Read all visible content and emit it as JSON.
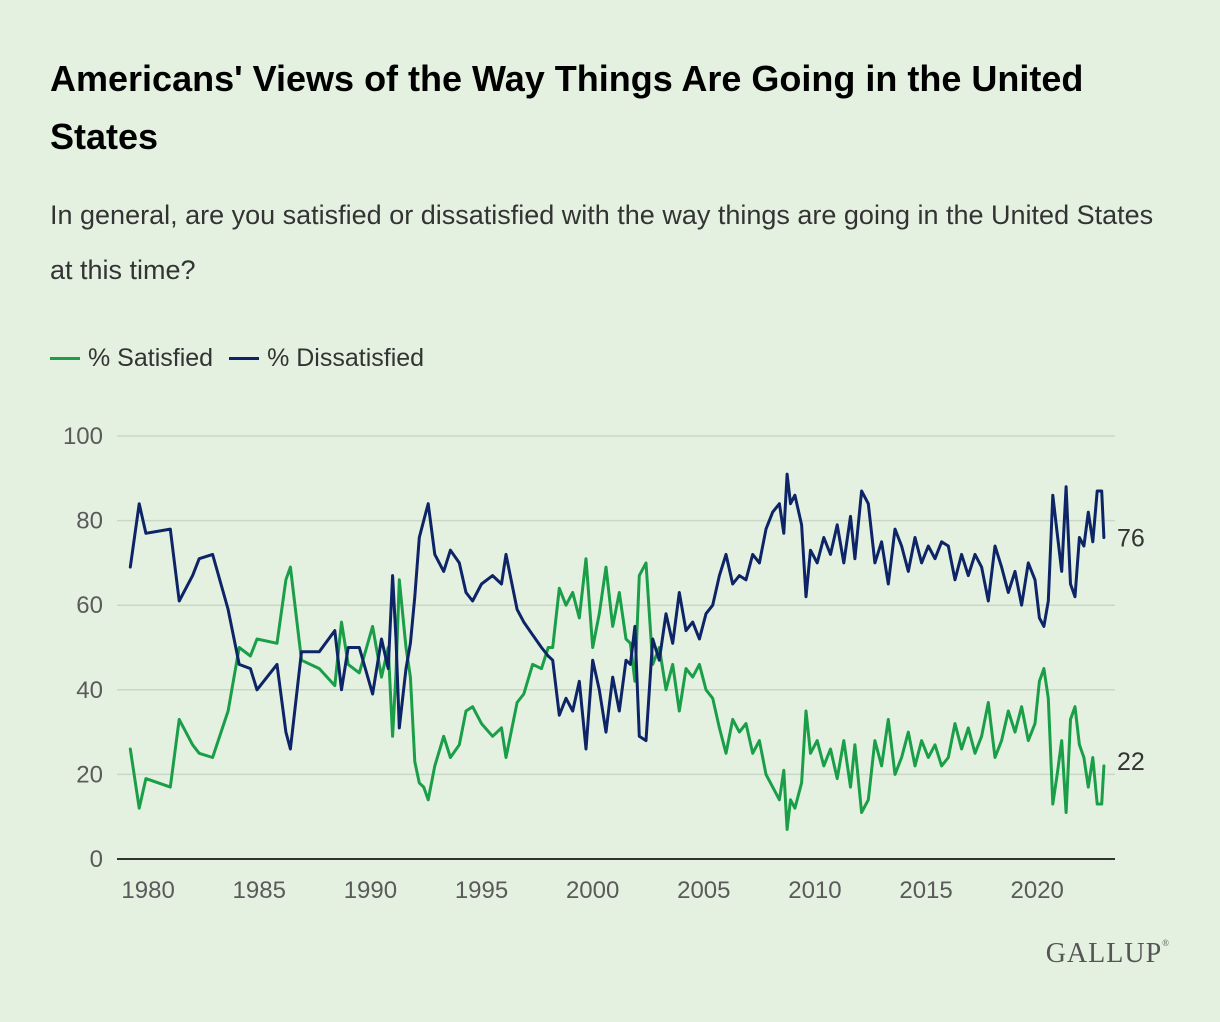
{
  "title": "Americans' Views of the Way Things Are Going in the United States",
  "subtitle": "In general, are you satisfied or dissatisfied with the way things are going in the United States at this time?",
  "legend": {
    "satisfied": "% Satisfied",
    "dissatisfied": "% Dissatisfied"
  },
  "logo": {
    "text": "GALLUP",
    "mark": "®"
  },
  "colors": {
    "satisfied": "#1a9e48",
    "dissatisfied": "#0d2466",
    "grid": "#c9d8c6",
    "axis": "#333333",
    "background": "#e4f1e1"
  },
  "chart_data": {
    "type": "line",
    "title": "Americans' Views of the Way Things Are Going in the United States",
    "xlabel": "",
    "ylabel": "",
    "xlim": [
      1978.6,
      2023.5
    ],
    "ylim": [
      0,
      100
    ],
    "y_ticks": [
      0,
      20,
      40,
      60,
      80,
      100
    ],
    "x_ticks": [
      1980,
      1985,
      1990,
      1995,
      2000,
      2005,
      2010,
      2015,
      2020
    ],
    "grid": true,
    "legend_position": "top-left",
    "end_labels": {
      "satisfied": "22",
      "dissatisfied": "76"
    },
    "series": [
      {
        "name": "% Satisfied",
        "key": "satisfied",
        "x": [
          1979.2,
          1979.6,
          1979.9,
          1981.0,
          1981.4,
          1982.0,
          1982.3,
          1982.9,
          1983.6,
          1984.1,
          1984.6,
          1984.9,
          1985.8,
          1986.2,
          1986.4,
          1986.9,
          1987.7,
          1988.4,
          1988.7,
          1989.0,
          1989.5,
          1990.1,
          1990.5,
          1990.8,
          1991.0,
          1991.15,
          1991.3,
          1991.6,
          1991.8,
          1992.0,
          1992.2,
          1992.4,
          1992.6,
          1992.9,
          1993.3,
          1993.6,
          1994.0,
          1994.3,
          1994.6,
          1995.0,
          1995.5,
          1995.9,
          1996.1,
          1996.6,
          1996.9,
          1997.3,
          1997.7,
          1998.0,
          1998.2,
          1998.5,
          1998.8,
          1999.1,
          1999.4,
          1999.7,
          2000.0,
          2000.3,
          2000.6,
          2000.9,
          2001.2,
          2001.5,
          2001.7,
          2001.9,
          2002.1,
          2002.4,
          2002.7,
          2003.0,
          2003.3,
          2003.6,
          2003.9,
          2004.2,
          2004.5,
          2004.8,
          2005.1,
          2005.4,
          2005.7,
          2006.0,
          2006.3,
          2006.6,
          2006.9,
          2007.2,
          2007.5,
          2007.8,
          2008.1,
          2008.4,
          2008.6,
          2008.75,
          2008.9,
          2009.1,
          2009.4,
          2009.6,
          2009.8,
          2010.1,
          2010.4,
          2010.7,
          2011.0,
          2011.3,
          2011.6,
          2011.8,
          2012.1,
          2012.4,
          2012.7,
          2013.0,
          2013.3,
          2013.6,
          2013.9,
          2014.2,
          2014.5,
          2014.8,
          2015.1,
          2015.4,
          2015.7,
          2016.0,
          2016.3,
          2016.6,
          2016.9,
          2017.2,
          2017.5,
          2017.8,
          2018.1,
          2018.4,
          2018.7,
          2019.0,
          2019.3,
          2019.6,
          2019.9,
          2020.1,
          2020.3,
          2020.5,
          2020.7,
          2020.9,
          2021.1,
          2021.3,
          2021.5,
          2021.7,
          2021.9,
          2022.1,
          2022.3,
          2022.5,
          2022.7,
          2022.9,
          2023.0
        ],
        "y": [
          26,
          12,
          19,
          17,
          33,
          27,
          25,
          24,
          35,
          50,
          48,
          52,
          51,
          66,
          69,
          47,
          45,
          41,
          56,
          46,
          44,
          55,
          43,
          50,
          29,
          44,
          66,
          50,
          43,
          23,
          18,
          17,
          14,
          22,
          29,
          24,
          27,
          35,
          36,
          32,
          29,
          31,
          24,
          37,
          39,
          46,
          45,
          50,
          50,
          64,
          60,
          63,
          57,
          71,
          50,
          58,
          69,
          55,
          63,
          52,
          51,
          42,
          67,
          70,
          46,
          50,
          40,
          46,
          35,
          45,
          43,
          46,
          40,
          38,
          31,
          25,
          33,
          30,
          32,
          25,
          28,
          20,
          17,
          14,
          21,
          7,
          14,
          12,
          18,
          35,
          25,
          28,
          22,
          26,
          19,
          28,
          17,
          27,
          11,
          14,
          28,
          22,
          33,
          20,
          24,
          30,
          22,
          28,
          24,
          27,
          22,
          24,
          32,
          26,
          31,
          25,
          29,
          37,
          24,
          28,
          35,
          30,
          36,
          28,
          32,
          42,
          45,
          38,
          13,
          20,
          28,
          11,
          33,
          36,
          27,
          24,
          17,
          24,
          13,
          13,
          22
        ]
      },
      {
        "name": "% Dissatisfied",
        "key": "dissatisfied",
        "x": [
          1979.2,
          1979.6,
          1979.9,
          1981.0,
          1981.4,
          1982.0,
          1982.3,
          1982.9,
          1983.6,
          1984.1,
          1984.6,
          1984.9,
          1985.8,
          1986.2,
          1986.4,
          1986.9,
          1987.7,
          1988.4,
          1988.7,
          1989.0,
          1989.5,
          1990.1,
          1990.5,
          1990.8,
          1991.0,
          1991.15,
          1991.3,
          1991.6,
          1991.8,
          1992.0,
          1992.2,
          1992.4,
          1992.6,
          1992.9,
          1993.3,
          1993.6,
          1994.0,
          1994.3,
          1994.6,
          1995.0,
          1995.5,
          1995.9,
          1996.1,
          1996.6,
          1996.9,
          1997.3,
          1997.7,
          1998.0,
          1998.2,
          1998.5,
          1998.8,
          1999.1,
          1999.4,
          1999.7,
          2000.0,
          2000.3,
          2000.6,
          2000.9,
          2001.2,
          2001.5,
          2001.7,
          2001.9,
          2002.1,
          2002.4,
          2002.7,
          2003.0,
          2003.3,
          2003.6,
          2003.9,
          2004.2,
          2004.5,
          2004.8,
          2005.1,
          2005.4,
          2005.7,
          2006.0,
          2006.3,
          2006.6,
          2006.9,
          2007.2,
          2007.5,
          2007.8,
          2008.1,
          2008.4,
          2008.6,
          2008.75,
          2008.9,
          2009.1,
          2009.4,
          2009.6,
          2009.8,
          2010.1,
          2010.4,
          2010.7,
          2011.0,
          2011.3,
          2011.6,
          2011.8,
          2012.1,
          2012.4,
          2012.7,
          2013.0,
          2013.3,
          2013.6,
          2013.9,
          2014.2,
          2014.5,
          2014.8,
          2015.1,
          2015.4,
          2015.7,
          2016.0,
          2016.3,
          2016.6,
          2016.9,
          2017.2,
          2017.5,
          2017.8,
          2018.1,
          2018.4,
          2018.7,
          2019.0,
          2019.3,
          2019.6,
          2019.9,
          2020.1,
          2020.3,
          2020.5,
          2020.7,
          2020.9,
          2021.1,
          2021.3,
          2021.5,
          2021.7,
          2021.9,
          2022.1,
          2022.3,
          2022.5,
          2022.7,
          2022.9,
          2023.0
        ],
        "y": [
          69,
          84,
          77,
          78,
          61,
          67,
          71,
          72,
          59,
          46,
          45,
          40,
          46,
          30,
          26,
          49,
          49,
          54,
          40,
          50,
          50,
          39,
          52,
          45,
          67,
          52,
          31,
          45,
          51,
          62,
          76,
          80,
          84,
          72,
          68,
          73,
          70,
          63,
          61,
          65,
          67,
          65,
          72,
          59,
          56,
          53,
          50,
          48,
          47,
          34,
          38,
          35,
          42,
          26,
          47,
          40,
          30,
          43,
          35,
          47,
          46,
          55,
          29,
          28,
          52,
          47,
          58,
          51,
          63,
          54,
          56,
          52,
          58,
          60,
          67,
          72,
          65,
          67,
          66,
          72,
          70,
          78,
          82,
          84,
          77,
          91,
          84,
          86,
          79,
          62,
          73,
          70,
          76,
          72,
          79,
          70,
          81,
          71,
          87,
          84,
          70,
          75,
          65,
          78,
          74,
          68,
          76,
          70,
          74,
          71,
          75,
          74,
          66,
          72,
          67,
          72,
          69,
          61,
          74,
          69,
          63,
          68,
          60,
          70,
          66,
          57,
          55,
          61,
          86,
          77,
          68,
          88,
          65,
          62,
          76,
          74,
          82,
          75,
          87,
          87,
          76
        ]
      }
    ]
  }
}
